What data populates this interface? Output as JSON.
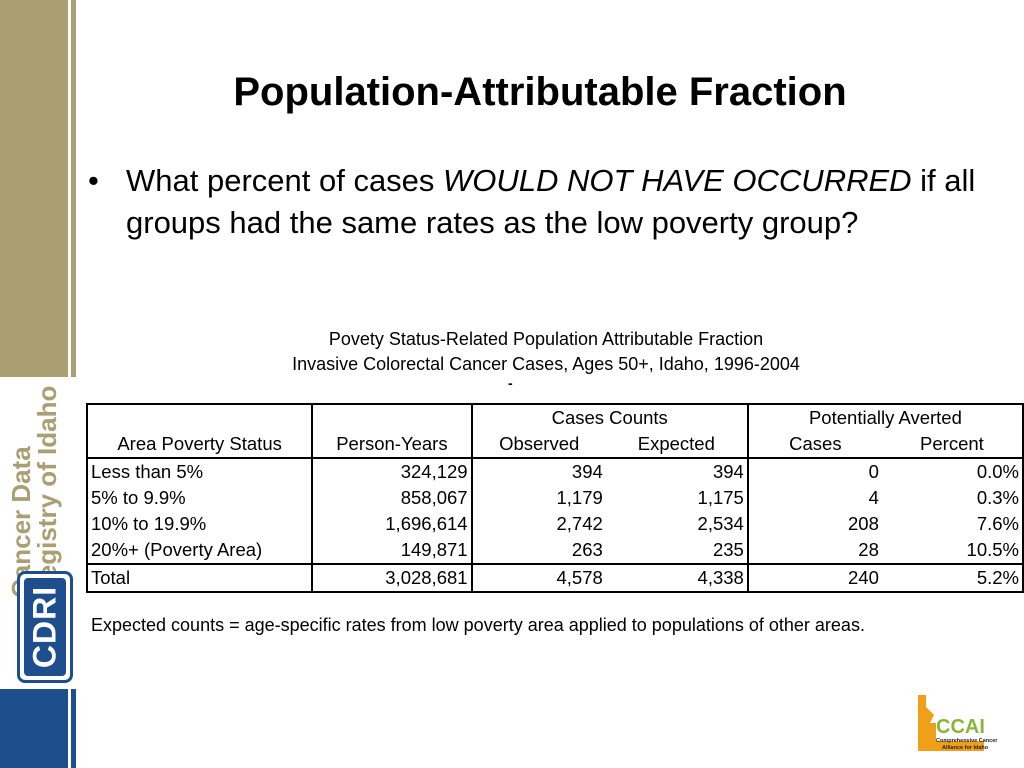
{
  "title": "Population-Attributable Fraction",
  "bullet": {
    "text_before": "What percent of cases ",
    "emphasis": "WOULD NOT HAVE OCCURRED",
    "text_after": " if all groups had the same rates as the low poverty group?"
  },
  "caption": {
    "line1": "Povety Status-Related Population Attributable Fraction",
    "line2": "Invasive Colorectal Cancer Cases, Ages 50+, Idaho, 1996-2004",
    "mark": "-"
  },
  "table": {
    "group_header_counts": "Cases Counts",
    "group_header_averted": "Potentially Averted",
    "headers": [
      "Area Poverty Status",
      "Person-Years",
      "Observed",
      "Expected",
      "Cases",
      "Percent"
    ],
    "rows": [
      [
        "Less than 5%",
        "324,129",
        "394",
        "394",
        "0",
        "0.0%"
      ],
      [
        "5% to 9.9%",
        "858,067",
        "1,179",
        "1,175",
        "4",
        "0.3%"
      ],
      [
        "10% to 19.9%",
        "1,696,614",
        "2,742",
        "2,534",
        "208",
        "7.6%"
      ],
      [
        "20%+ (Poverty Area)",
        "149,871",
        "263",
        "235",
        "28",
        "10.5%"
      ]
    ],
    "total": [
      "Total",
      "3,028,681",
      "4,578",
      "4,338",
      "240",
      "5.2%"
    ]
  },
  "footnote": "Expected counts = age-specific rates from low poverty area applied to populations of other areas.",
  "logo": {
    "line1": "Cancer Data",
    "line2": "Registry of Idaho",
    "acronym": "CDRI"
  },
  "ccai": {
    "acronym": "CCAI",
    "name_line1": "Comprehensive Cancer",
    "name_line2": "Alliance for Idaho"
  },
  "colors": {
    "gold": "#aa9e73",
    "navy": "#1e4e8c",
    "ccai_orange": "#f0a018"
  }
}
